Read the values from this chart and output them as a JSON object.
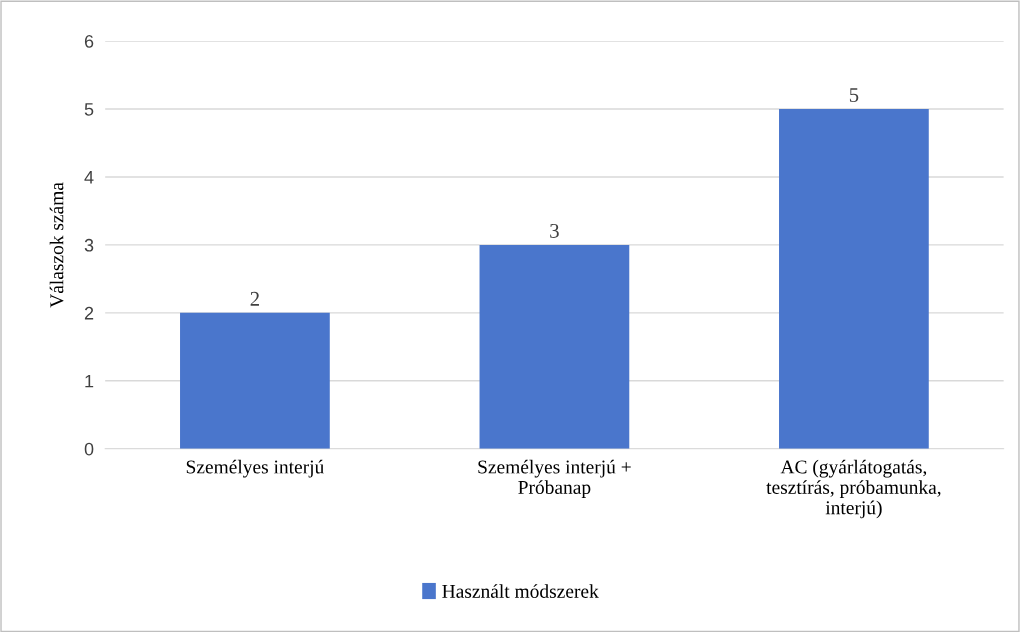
{
  "chart_data": {
    "type": "bar",
    "ylabel": "Válaszok száma",
    "categories": [
      "Személyes interjú",
      "Személyes interjú +\nPróbanap",
      "AC (gyárlátogatás,\ntesztírás, próbamunka,\ninterjú)"
    ],
    "series": [
      {
        "name": "Használt módszerek",
        "color": "#4a76cc",
        "values": [
          2,
          3,
          5
        ]
      }
    ],
    "ylim": [
      0,
      6
    ],
    "yticks": [
      0,
      1,
      2,
      3,
      4,
      5,
      6
    ],
    "grid": "y",
    "legend": "bottom",
    "data_labels": true
  }
}
